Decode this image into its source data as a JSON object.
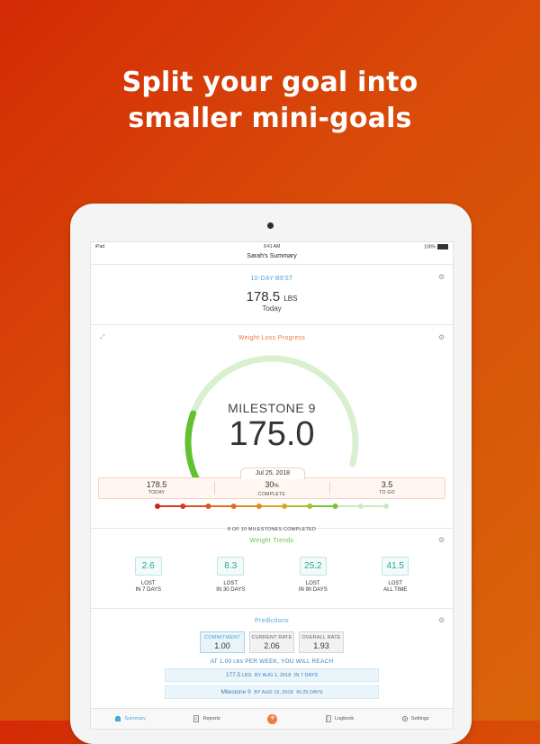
{
  "headline": [
    "Split your goal into",
    "smaller mini-goals"
  ],
  "status_bar": {
    "device": "iPad",
    "time": "9:41 AM",
    "battery": "100%"
  },
  "nav": {
    "title": "Sarah's Summary"
  },
  "ten_day_best": {
    "title": "10-DAY-BEST",
    "value": "178.5",
    "unit": "LBS",
    "sub": "Today"
  },
  "progress": {
    "title": "Weight Loss Progress",
    "milestone_label": "MILESTONE 9",
    "milestone_value": "175.0",
    "gauge_fraction": 0.3,
    "date": "Jul 25, 2018",
    "stats": [
      {
        "value": "178.5",
        "suffix": "",
        "label": "TODAY"
      },
      {
        "value": "30",
        "suffix": "%",
        "label": "COMPLETE"
      },
      {
        "value": "3.5",
        "suffix": "",
        "label": "TO GO"
      }
    ],
    "milestones_completed": 8,
    "milestones_total": 10,
    "milestone_colors": [
      "#c8261b",
      "#d43a1c",
      "#d9561f",
      "#e06f21",
      "#e08a1f",
      "#dba625",
      "#a9c02c",
      "#7dc33a",
      "#cfe8c4",
      "#cfe8c4"
    ],
    "milestones_text": "8 OF 10 MILESTONES COMPLETED",
    "colors": {
      "gauge_track": "#d9efcf",
      "gauge_fill": "#63c02f",
      "accent": "#ef7a3d"
    }
  },
  "trends": {
    "title": "Weight Trends",
    "items": [
      {
        "value": "2.6",
        "line1": "LOST",
        "line2": "IN 7 DAYS"
      },
      {
        "value": "8.3",
        "line1": "LOST",
        "line2": "IN 30 DAYS"
      },
      {
        "value": "25.2",
        "line1": "LOST",
        "line2": "IN 90 DAYS"
      },
      {
        "value": "41.5",
        "line1": "LOST",
        "line2": "ALL TIME"
      }
    ]
  },
  "predictions": {
    "title": "Predictions",
    "rates": [
      {
        "label": "COMMITMENT",
        "value": "1.00",
        "selected": true
      },
      {
        "label": "CURRENT RATE",
        "value": "2.06",
        "selected": false
      },
      {
        "label": "OVERALL RATE",
        "value": "1.93",
        "selected": false
      }
    ],
    "reach": {
      "prefix": "AT",
      "rate": "1.00",
      "unit": "LBS",
      "suffix": "PER WEEK, YOU WILL REACH"
    },
    "rows": [
      {
        "target": "177.5",
        "target_unit": "LBS",
        "by": "BY AUG 1, 2018",
        "in": "IN 7 DAYS"
      },
      {
        "target": "Milestone 9",
        "target_unit": "",
        "by": "BY AUG 19, 2018",
        "in": "IN 25 DAYS"
      }
    ]
  },
  "tabbar": {
    "items": [
      {
        "label": "Summary",
        "icon": "summary-icon",
        "active": true
      },
      {
        "label": "Reports",
        "icon": "reports-icon",
        "active": false
      },
      {
        "label": "+",
        "icon": "add-icon",
        "active": false
      },
      {
        "label": "Logbook",
        "icon": "logbook-icon",
        "active": false
      },
      {
        "label": "Settings",
        "icon": "settings-icon",
        "active": false
      }
    ]
  }
}
